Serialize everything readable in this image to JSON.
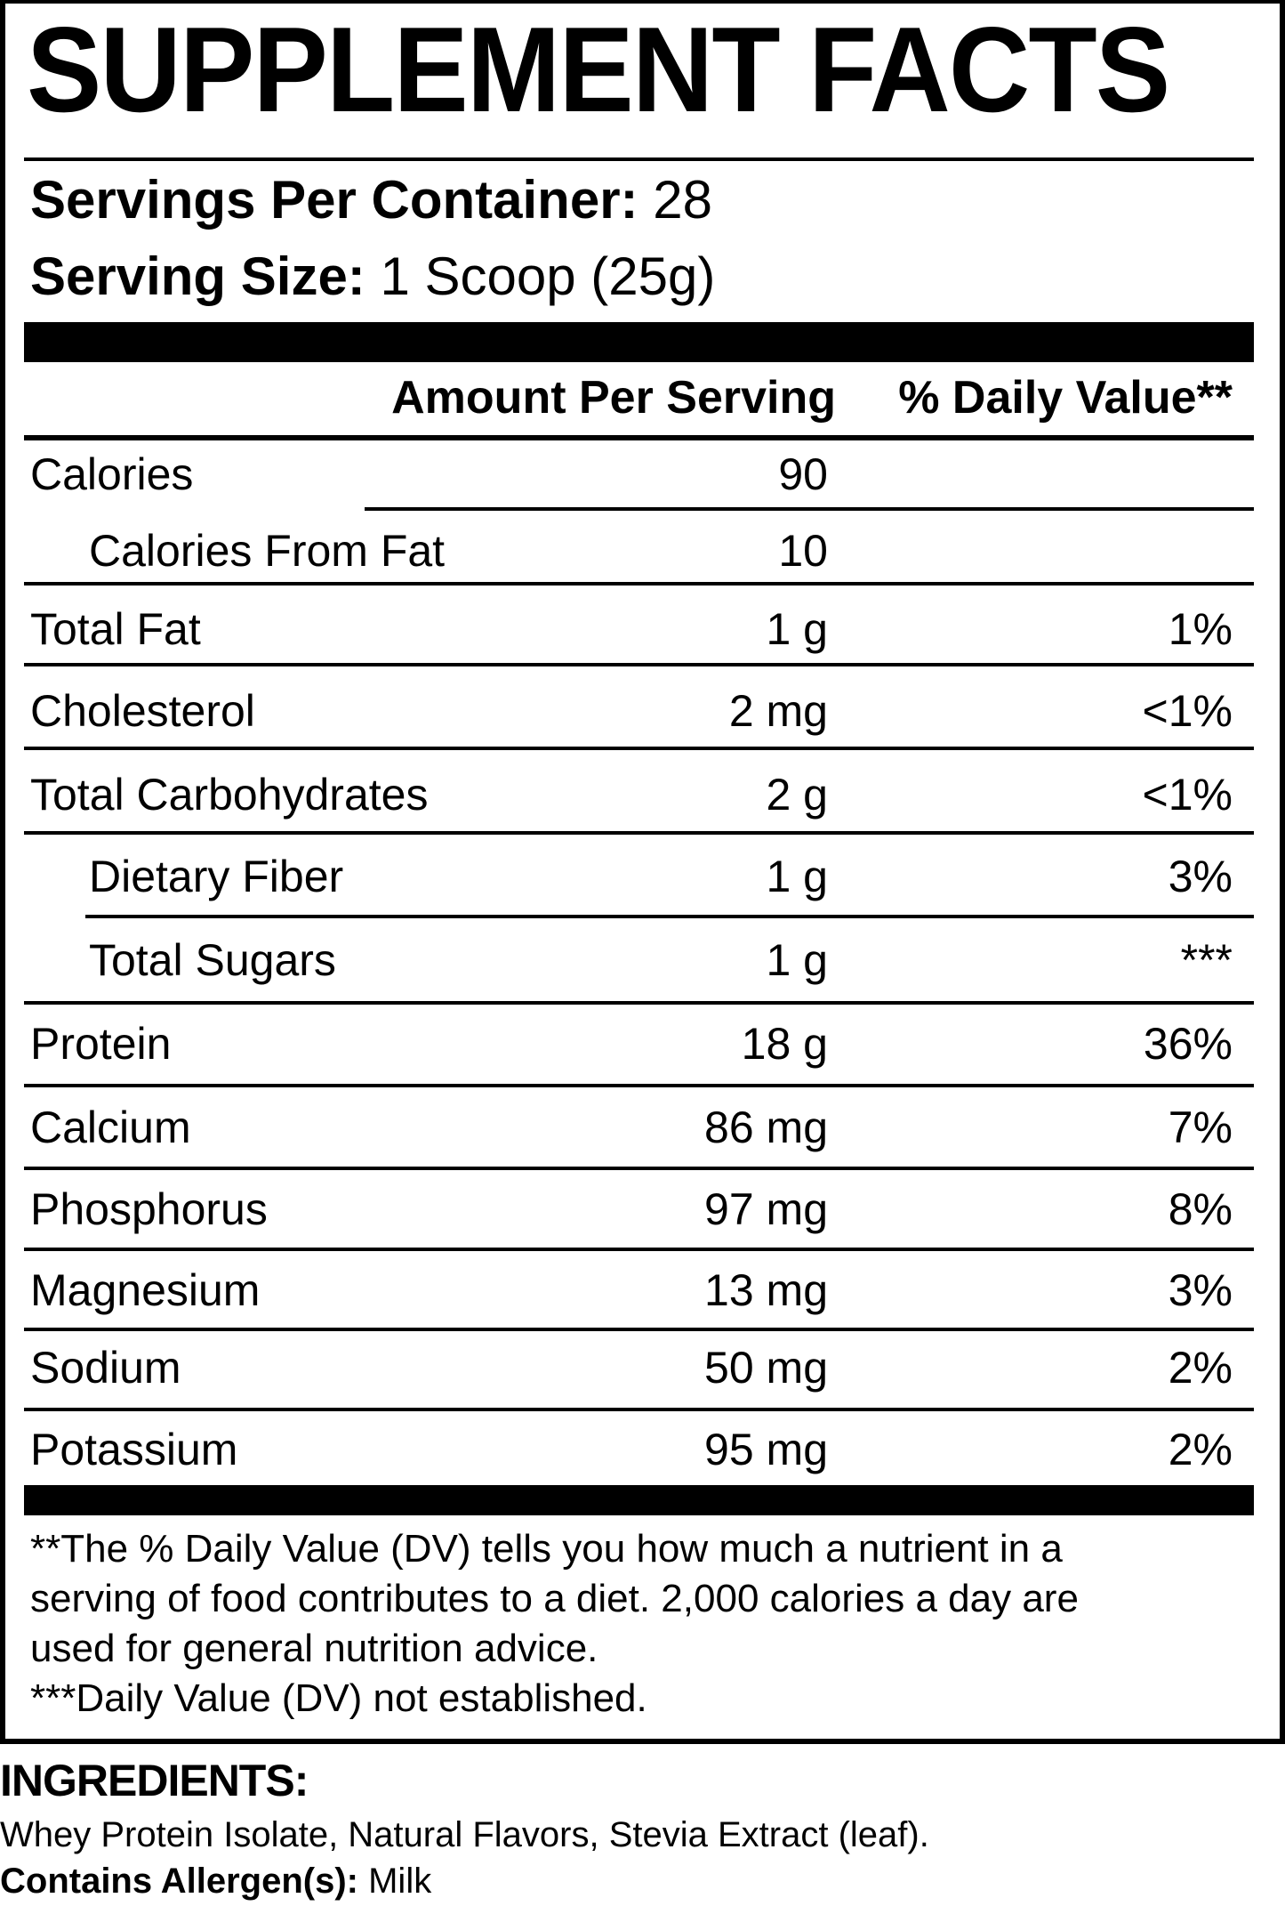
{
  "title": "SUPPLEMENT FACTS",
  "servings": {
    "label": "Servings Per Container:",
    "value": "28"
  },
  "serving_size": {
    "label": "Serving Size:",
    "value": "1 Scoop (25g)"
  },
  "header": {
    "amount": "Amount Per Serving",
    "dv": "% Daily Value**"
  },
  "rows": [
    {
      "name": "Calories",
      "amount": "90",
      "dv": "",
      "indent": false
    },
    {
      "name": "Calories From Fat",
      "amount": "10",
      "dv": "",
      "indent": true
    },
    {
      "name": "Total Fat",
      "amount": "1 g",
      "dv": "1%",
      "indent": false
    },
    {
      "name": "Cholesterol",
      "amount": "2 mg",
      "dv": "<1%",
      "indent": false
    },
    {
      "name": "Total Carbohydrates",
      "amount": "2 g",
      "dv": "<1%",
      "indent": false
    },
    {
      "name": "Dietary Fiber",
      "amount": "1 g",
      "dv": "3%",
      "indent": true
    },
    {
      "name": "Total Sugars",
      "amount": "1 g",
      "dv": "***",
      "indent": true
    },
    {
      "name": "Protein",
      "amount": "18 g",
      "dv": "36%",
      "indent": false
    },
    {
      "name": "Calcium",
      "amount": "86 mg",
      "dv": "7%",
      "indent": false
    },
    {
      "name": "Phosphorus",
      "amount": "97 mg",
      "dv": "8%",
      "indent": false
    },
    {
      "name": "Magnesium",
      "amount": "13 mg",
      "dv": "3%",
      "indent": false
    },
    {
      "name": "Sodium",
      "amount": "50 mg",
      "dv": "2%",
      "indent": false
    },
    {
      "name": "Potassium",
      "amount": "95 mg",
      "dv": "2%",
      "indent": false
    }
  ],
  "footnotes": [
    "**The % Daily Value (DV) tells you how much a nutrient in a",
    "serving of food contributes to a diet. 2,000 calories a day are",
    "used for general nutrition advice.",
    "***Daily Value (DV) not established."
  ],
  "ingredients": {
    "heading": "INGREDIENTS:",
    "text": "Whey Protein Isolate, Natural Flavors, Stevia Extract (leaf).",
    "allergen_label": "Contains Allergen(s):",
    "allergen_value": " Milk"
  }
}
